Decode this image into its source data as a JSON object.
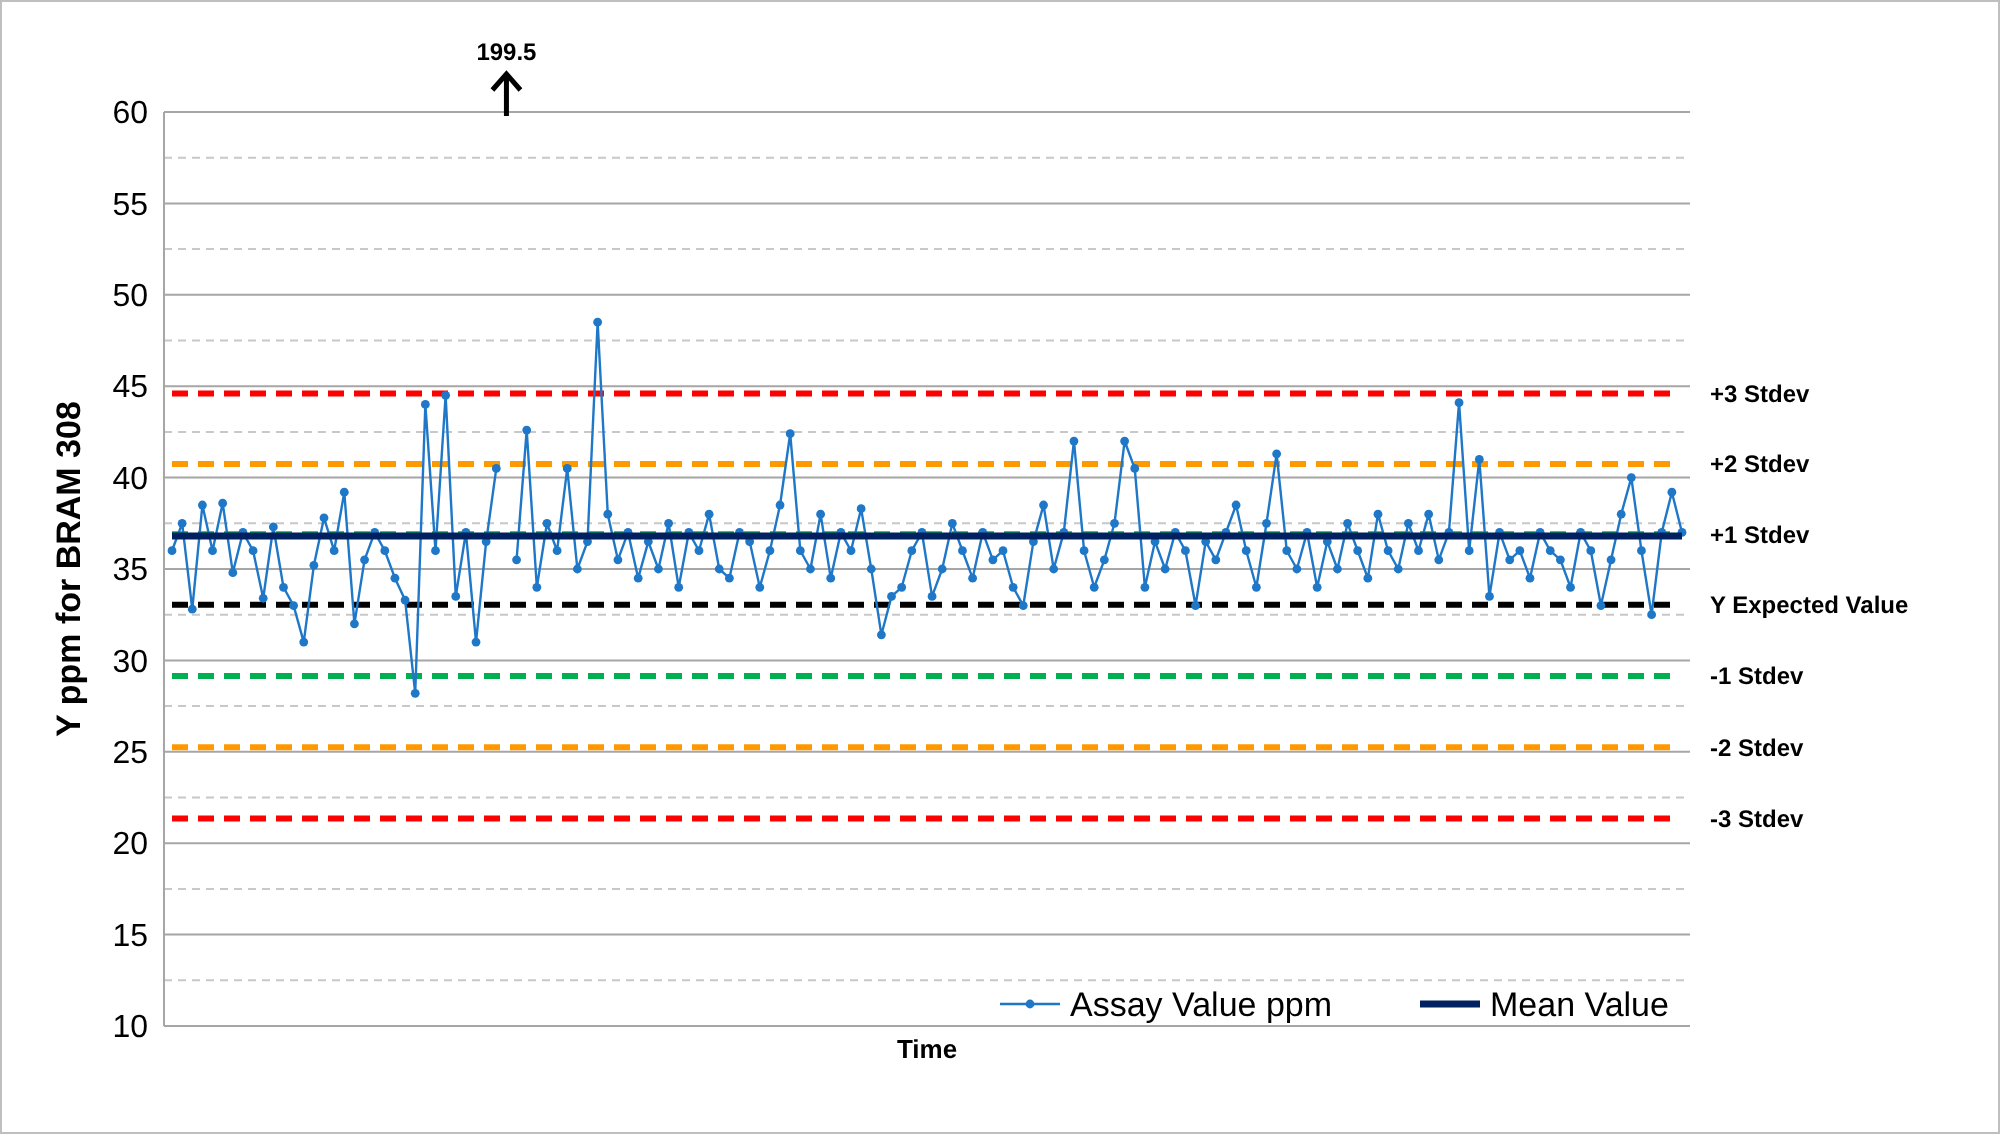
{
  "chart_data": {
    "type": "line",
    "ylabel": "Y ppm for BRAM 308",
    "xlabel": "Time",
    "categories": [
      null,
      null,
      null,
      null,
      null,
      null,
      null,
      null,
      null,
      null,
      null,
      null,
      null,
      null,
      null,
      null,
      null,
      null,
      null,
      null,
      null,
      null,
      null,
      null,
      null,
      null,
      null,
      null,
      null,
      null,
      null,
      null,
      null,
      null,
      null,
      null,
      null,
      null,
      null,
      null,
      null,
      null,
      null,
      null,
      null,
      null,
      null,
      null,
      null,
      null,
      null,
      null,
      null,
      null,
      null,
      null,
      null,
      null,
      null,
      null,
      null,
      null,
      null,
      null,
      null,
      null,
      null,
      null,
      null,
      null,
      null,
      null,
      null,
      null,
      null,
      null,
      null,
      null,
      null,
      null,
      null,
      null,
      null,
      null,
      null,
      null,
      null,
      null,
      null,
      null,
      null,
      null,
      null,
      null,
      null,
      null,
      null,
      null,
      null,
      null,
      null,
      null,
      null,
      null,
      null,
      null,
      null,
      null,
      null,
      null,
      null,
      null,
      null,
      null,
      null,
      null,
      null,
      null,
      null,
      null,
      null,
      null,
      null,
      null,
      null,
      null,
      null,
      null,
      null,
      null,
      null,
      null,
      null,
      null,
      null,
      null,
      null,
      null,
      null,
      null,
      null,
      null,
      null,
      null,
      null,
      null,
      null,
      null,
      null,
      null
    ],
    "series": [
      {
        "name": "Assay Value ppm",
        "color": "#1f77c8",
        "marker": "circle",
        "values": [
          36,
          37.5,
          32.8,
          38.5,
          36,
          38.6,
          34.8,
          37,
          36,
          33.4,
          37.3,
          34,
          33,
          31,
          35.2,
          37.8,
          36,
          39.2,
          32,
          35.5,
          37,
          36,
          34.5,
          33.3,
          28.2,
          44,
          36,
          44.5,
          33.5,
          37,
          31,
          36.5,
          40.5,
          null,
          35.5,
          42.6,
          34,
          37.5,
          36,
          40.5,
          35,
          36.5,
          48.5,
          38,
          35.5,
          37,
          34.5,
          36.5,
          35,
          37.5,
          34,
          37,
          36,
          38,
          35,
          34.5,
          37,
          36.5,
          34,
          36,
          38.5,
          42.4,
          36,
          35,
          38,
          34.5,
          37,
          36,
          38.3,
          35,
          31.4,
          33.5,
          34,
          36,
          37,
          33.5,
          35,
          37.5,
          36,
          34.5,
          37,
          35.5,
          36,
          34,
          33,
          36.5,
          38.5,
          35,
          37,
          42,
          36,
          34,
          35.5,
          37.5,
          42,
          40.5,
          34,
          36.5,
          35,
          37,
          36,
          33,
          36.5,
          35.5,
          37,
          38.5,
          36,
          34,
          37.5,
          41.3,
          36,
          35,
          37,
          34,
          36.5,
          35,
          37.5,
          36,
          34.5,
          38,
          36,
          35,
          37.5,
          36,
          38,
          35.5,
          37,
          44.1,
          36,
          41,
          33.5,
          37,
          35.5,
          36,
          34.5,
          37,
          36,
          35.5,
          34,
          37,
          36,
          33,
          35.5,
          38,
          40,
          36,
          32.5,
          37,
          39.2,
          37
        ]
      },
      {
        "name": "Mean Value",
        "color": "#002060",
        "marker": "none",
        "values": [
          36.8,
          36.8,
          36.8,
          36.8,
          36.8,
          36.8,
          36.8,
          36.8,
          36.8,
          36.8,
          36.8,
          36.8,
          36.8,
          36.8,
          36.8,
          36.8,
          36.8,
          36.8,
          36.8,
          36.8,
          36.8,
          36.8,
          36.8,
          36.8,
          36.8,
          36.8,
          36.8,
          36.8,
          36.8,
          36.8,
          36.8,
          36.8,
          36.8,
          36.8,
          36.8,
          36.8,
          36.8,
          36.8,
          36.8,
          36.8,
          36.8,
          36.8,
          36.8,
          36.8,
          36.8,
          36.8,
          36.8,
          36.8,
          36.8,
          36.8,
          36.8,
          36.8,
          36.8,
          36.8,
          36.8,
          36.8,
          36.8,
          36.8,
          36.8,
          36.8,
          36.8,
          36.8,
          36.8,
          36.8,
          36.8,
          36.8,
          36.8,
          36.8,
          36.8,
          36.8,
          36.8,
          36.8,
          36.8,
          36.8,
          36.8,
          36.8,
          36.8,
          36.8,
          36.8,
          36.8,
          36.8,
          36.8,
          36.8,
          36.8,
          36.8,
          36.8,
          36.8,
          36.8,
          36.8,
          36.8,
          36.8,
          36.8,
          36.8,
          36.8,
          36.8,
          36.8,
          36.8,
          36.8,
          36.8,
          36.8,
          36.8,
          36.8,
          36.8,
          36.8,
          36.8,
          36.8,
          36.8,
          36.8,
          36.8,
          36.8,
          36.8,
          36.8,
          36.8,
          36.8,
          36.8,
          36.8,
          36.8,
          36.8,
          36.8,
          36.8,
          36.8,
          36.8,
          36.8,
          36.8,
          36.8,
          36.8,
          36.8,
          36.8,
          36.8,
          36.8,
          36.8,
          36.8,
          36.8,
          36.8,
          36.8,
          36.8,
          36.8,
          36.8,
          36.8,
          36.8,
          36.8,
          36.8,
          36.8,
          36.8,
          36.8,
          36.8,
          36.8,
          36.8,
          36.8,
          36.8
        ]
      }
    ],
    "ylim": [
      10,
      60
    ],
    "yticks": [
      10,
      {
        "value": 12.5,
        "label": null
      },
      15,
      {
        "value": 17.5,
        "label": null
      },
      20,
      {
        "value": 22.5,
        "label": null
      },
      25,
      {
        "value": 27.5,
        "label": null
      },
      30,
      {
        "value": 32.5,
        "label": null
      },
      35,
      {
        "value": 37.5,
        "label": null
      },
      40,
      {
        "value": 42.5,
        "label": null
      },
      45,
      {
        "value": 47.5,
        "label": null
      },
      50,
      {
        "value": 52.5,
        "label": null
      },
      55,
      {
        "value": 57.5,
        "label": null
      },
      60
    ],
    "grid": "y",
    "legend": "bottom right",
    "line_style": "solid",
    "ref_lines": [
      {
        "axis": "y",
        "value": 44.6,
        "label": "+3 Stdev",
        "color": "#ff0000",
        "line_style": "dashed"
      },
      {
        "axis": "y",
        "value": 40.75,
        "label": "+2 Stdev",
        "color": "#ff9900",
        "line_style": "dashed"
      },
      {
        "axis": "y",
        "value": 36.9,
        "label": "+1 Stdev",
        "color": "#00b050",
        "line_style": "dashed"
      },
      {
        "axis": "y",
        "value": 33.05,
        "label": "Y Expected Value",
        "color": "#000000",
        "line_style": "dashed"
      },
      {
        "axis": "y",
        "value": 29.15,
        "label": "-1 Stdev",
        "color": "#00b050",
        "line_style": "dashed"
      },
      {
        "axis": "y",
        "value": 25.25,
        "label": "-2 Stdev",
        "color": "#ff9900",
        "line_style": "dashed"
      },
      {
        "axis": "y",
        "value": 21.35,
        "label": "-3 Stdev",
        "color": "#ff0000",
        "line_style": "dashed"
      }
    ],
    "annotations": [
      "199.5"
    ]
  }
}
